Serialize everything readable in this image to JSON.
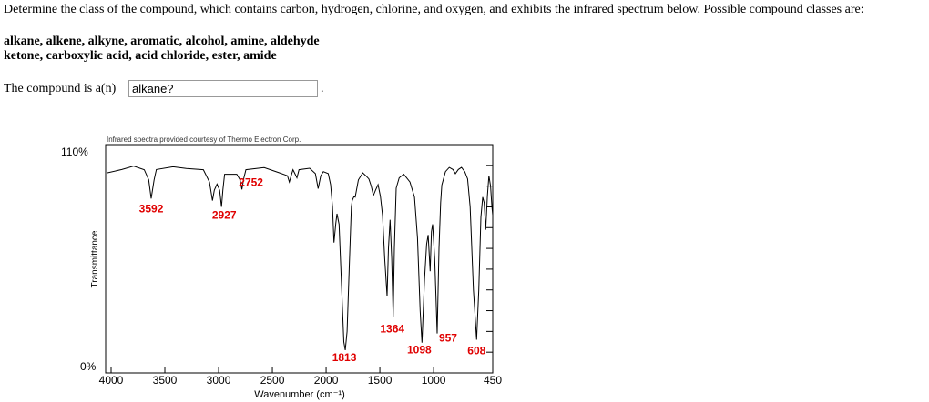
{
  "question": "Determine the class of the compound, which contains carbon, hydrogen, chlorine, and oxygen, and exhibits the infrared spectrum below. Possible compound classes are:",
  "classes_line1": "alkane, alkene, alkyne, aromatic, alcohol, amine, aldehyde",
  "classes_line2": "ketone, carboxylic acid, acid chloride, ester, amide",
  "answer_prefix": "The compound is a(n)",
  "answer_value": "alkane?",
  "answer_suffix": ".",
  "chart_data": {
    "type": "line",
    "credit": "Infrared spectra provided courtesy of Thermo Electron Corp.",
    "xlabel": "Wavenumber (cm⁻¹)",
    "ylabel": "Transmittance",
    "xlim": [
      4000,
      450
    ],
    "ylim": [
      0,
      110
    ],
    "x_ticks": [
      4000,
      3500,
      3000,
      2500,
      2000,
      1500,
      1000,
      450
    ],
    "y_tick_labels": [
      "110%",
      "0%"
    ],
    "peak_label_color": "#e00000",
    "peaks": [
      {
        "label": "3592",
        "wn": 3627,
        "t": 84
      },
      {
        "label": "2927",
        "wn": 2973,
        "t": 80
      },
      {
        "label": "2752",
        "wn": 2783,
        "t": 88.4
      },
      {
        "label": "1813",
        "wn": 1822,
        "t": 11
      },
      {
        "label": "1364",
        "wn": 1376,
        "t": 27
      },
      {
        "label": "1098",
        "wn": 1108,
        "t": 14.6
      },
      {
        "label": "957",
        "wn": 967,
        "t": 19
      },
      {
        "label": "608",
        "wn": 600,
        "t": 16
      }
    ],
    "spectrum": [
      [
        4034,
        96.4
      ],
      [
        3900,
        98
      ],
      [
        3791,
        99.6
      ],
      [
        3692,
        97.9
      ],
      [
        3650,
        93
      ],
      [
        3627,
        84
      ],
      [
        3600,
        93
      ],
      [
        3579,
        98
      ],
      [
        3424,
        99.3
      ],
      [
        3300,
        98.5
      ],
      [
        3142,
        97.9
      ],
      [
        3085,
        92
      ],
      [
        3057,
        83
      ],
      [
        3040,
        88
      ],
      [
        3015,
        91
      ],
      [
        2990,
        88
      ],
      [
        2973,
        80
      ],
      [
        2960,
        88
      ],
      [
        2944,
        95.7
      ],
      [
        2831,
        95.7
      ],
      [
        2800,
        93
      ],
      [
        2783,
        88.4
      ],
      [
        2765,
        94
      ],
      [
        2746,
        97.9
      ],
      [
        2577,
        98.9
      ],
      [
        2435,
        96.4
      ],
      [
        2360,
        95
      ],
      [
        2342,
        92
      ],
      [
        2325,
        95
      ],
      [
        2308,
        97.9
      ],
      [
        2290,
        96
      ],
      [
        2272,
        94
      ],
      [
        2252,
        97.9
      ],
      [
        2153,
        98.6
      ],
      [
        2100,
        96
      ],
      [
        2074,
        88.8
      ],
      [
        2050,
        95
      ],
      [
        2026,
        97
      ],
      [
        1980,
        96
      ],
      [
        1958,
        90.7
      ],
      [
        1940,
        80
      ],
      [
        1927,
        62.8
      ],
      [
        1910,
        72
      ],
      [
        1899,
        76.7
      ],
      [
        1879,
        71.6
      ],
      [
        1855,
        40
      ],
      [
        1835,
        15
      ],
      [
        1822,
        11
      ],
      [
        1805,
        20
      ],
      [
        1785,
        50
      ],
      [
        1765,
        80
      ],
      [
        1757,
        83
      ],
      [
        1740,
        85
      ],
      [
        1729,
        84.7
      ],
      [
        1700,
        93
      ],
      [
        1659,
        96.4
      ],
      [
        1630,
        95
      ],
      [
        1602,
        93.5
      ],
      [
        1580,
        90
      ],
      [
        1560,
        85.5
      ],
      [
        1540,
        88
      ],
      [
        1517,
        90.7
      ],
      [
        1495,
        85
      ],
      [
        1475,
        76
      ],
      [
        1455,
        55
      ],
      [
        1433,
        37
      ],
      [
        1420,
        60
      ],
      [
        1405,
        73.8
      ],
      [
        1390,
        55
      ],
      [
        1376,
        27
      ],
      [
        1365,
        60
      ],
      [
        1348,
        89
      ],
      [
        1320,
        94
      ],
      [
        1278,
        95.7
      ],
      [
        1220,
        92
      ],
      [
        1178,
        84.7
      ],
      [
        1150,
        65
      ],
      [
        1125,
        30
      ],
      [
        1108,
        14.6
      ],
      [
        1085,
        45
      ],
      [
        1065,
        62
      ],
      [
        1051,
        66.5
      ],
      [
        1032,
        49
      ],
      [
        1020,
        68
      ],
      [
        1009,
        71.6
      ],
      [
        990,
        55
      ],
      [
        967,
        19
      ],
      [
        950,
        60
      ],
      [
        935,
        82
      ],
      [
        924,
        90.5
      ],
      [
        890,
        97
      ],
      [
        854,
        99
      ],
      [
        820,
        98
      ],
      [
        797,
        96
      ],
      [
        770,
        98
      ],
      [
        741,
        99
      ],
      [
        710,
        97
      ],
      [
        684,
        93.5
      ],
      [
        660,
        80
      ],
      [
        630,
        40
      ],
      [
        600,
        16
      ],
      [
        580,
        40
      ],
      [
        560,
        75
      ],
      [
        543,
        84.7
      ],
      [
        530,
        82
      ],
      [
        515,
        69
      ],
      [
        500,
        85
      ],
      [
        486,
        95
      ],
      [
        470,
        90
      ],
      [
        458,
        80
      ],
      [
        450,
        76
      ]
    ]
  }
}
